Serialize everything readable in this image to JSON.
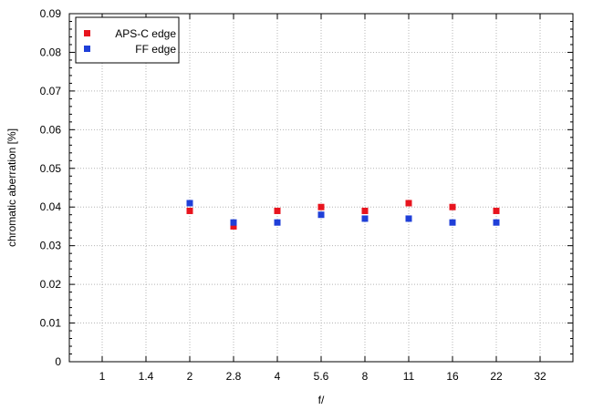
{
  "chart_data": {
    "type": "scatter",
    "xlabel": "f/",
    "ylabel": "chromatic aberration [%]",
    "categories": [
      "1",
      "1.4",
      "2",
      "2.8",
      "4",
      "5.6",
      "8",
      "11",
      "16",
      "22",
      "32"
    ],
    "ylim": [
      0,
      0.09
    ],
    "yticks": [
      "0",
      "0.01",
      "0.02",
      "0.03",
      "0.04",
      "0.05",
      "0.06",
      "0.07",
      "0.08",
      "0.09"
    ],
    "grid": true,
    "legend_position": "top-left",
    "series": [
      {
        "name": "APS-C edge",
        "color": "#e8141e",
        "points": [
          {
            "x": "2",
            "y": 0.039
          },
          {
            "x": "2.8",
            "y": 0.035
          },
          {
            "x": "4",
            "y": 0.039
          },
          {
            "x": "5.6",
            "y": 0.04
          },
          {
            "x": "8",
            "y": 0.039
          },
          {
            "x": "11",
            "y": 0.041
          },
          {
            "x": "16",
            "y": 0.04
          },
          {
            "x": "22",
            "y": 0.039
          }
        ]
      },
      {
        "name": "FF edge",
        "color": "#1f3fd8",
        "points": [
          {
            "x": "2",
            "y": 0.041
          },
          {
            "x": "2.8",
            "y": 0.036
          },
          {
            "x": "4",
            "y": 0.036
          },
          {
            "x": "5.6",
            "y": 0.038
          },
          {
            "x": "8",
            "y": 0.037
          },
          {
            "x": "11",
            "y": 0.037
          },
          {
            "x": "16",
            "y": 0.036
          },
          {
            "x": "22",
            "y": 0.036
          }
        ]
      }
    ]
  }
}
